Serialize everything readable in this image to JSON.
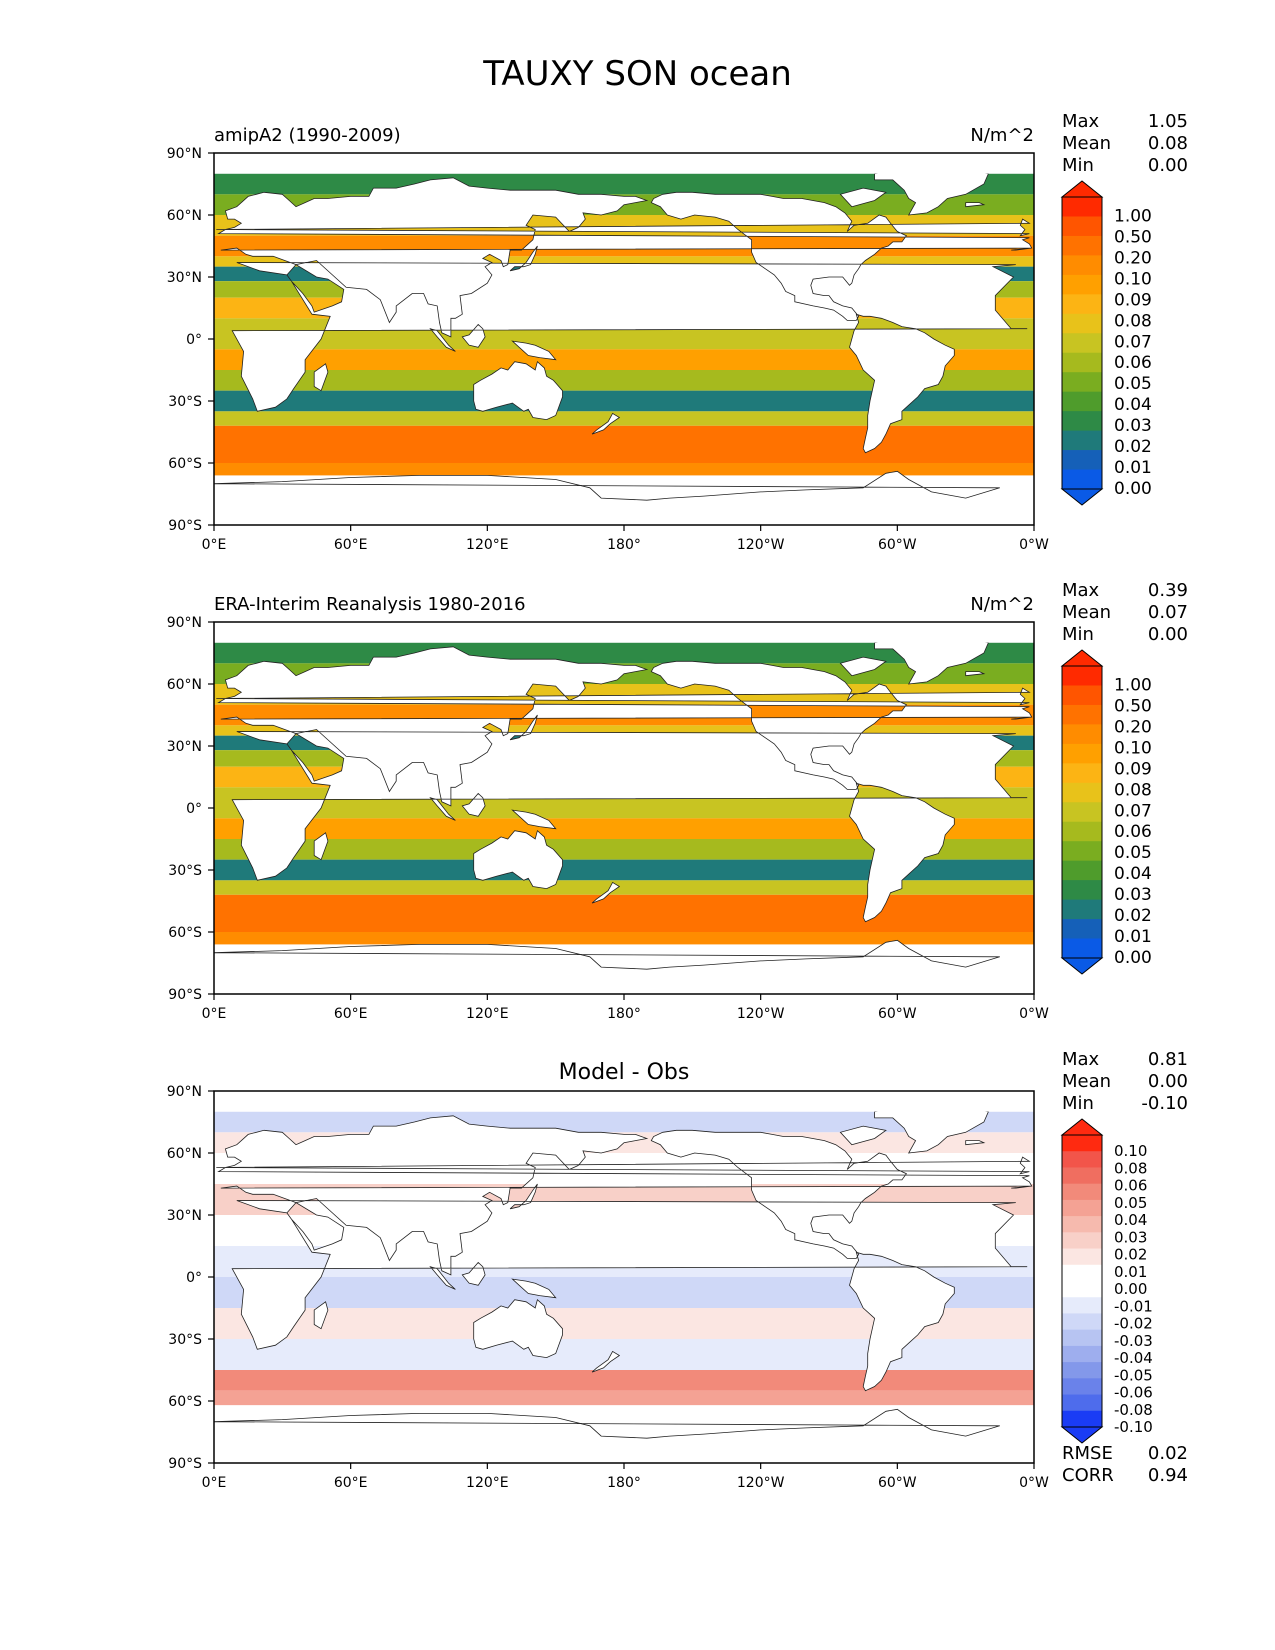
{
  "figure": {
    "title": "TAUXY SON ocean"
  },
  "axes": {
    "lat_ticks": [
      "90°N",
      "60°N",
      "30°N",
      "0°",
      "30°S",
      "60°S",
      "90°S"
    ],
    "lon_ticks": [
      "0°E",
      "60°E",
      "120°E",
      "180°",
      "120°W",
      "60°W",
      "0°W"
    ]
  },
  "stat_labels": {
    "max": "Max",
    "mean": "Mean",
    "min": "Min",
    "rmse": "RMSE",
    "corr": "CORR"
  },
  "panels": [
    {
      "left_title": "amipA2 (1990-2009)",
      "center_title": "",
      "units": "N/m^2",
      "stats": {
        "max": "1.05",
        "mean": "0.08",
        "min": "0.00"
      },
      "colorbar": {
        "labels": [
          "1.00",
          "0.50",
          "0.20",
          "0.10",
          "0.09",
          "0.08",
          "0.07",
          "0.06",
          "0.05",
          "0.04",
          "0.03",
          "0.02",
          "0.01",
          "0.00"
        ],
        "colors": [
          "#ff2a00",
          "#ff5500",
          "#ff7200",
          "#ff8c00",
          "#ffa000",
          "#fcb414",
          "#e8c21a",
          "#c8c422",
          "#a6ba1e",
          "#7aad20",
          "#4f9c2c",
          "#2e8a46",
          "#1f7a7a",
          "#1560b8",
          "#0a5ae6"
        ]
      }
    },
    {
      "left_title": "ERA-Interim Reanalysis 1980-2016",
      "center_title": "",
      "units": "N/m^2",
      "stats": {
        "max": "0.39",
        "mean": "0.07",
        "min": "0.00"
      },
      "colorbar": {
        "labels": [
          "1.00",
          "0.50",
          "0.20",
          "0.10",
          "0.09",
          "0.08",
          "0.07",
          "0.06",
          "0.05",
          "0.04",
          "0.03",
          "0.02",
          "0.01",
          "0.00"
        ],
        "colors": [
          "#ff2a00",
          "#ff5500",
          "#ff7200",
          "#ff8c00",
          "#ffa000",
          "#fcb414",
          "#e8c21a",
          "#c8c422",
          "#a6ba1e",
          "#7aad20",
          "#4f9c2c",
          "#2e8a46",
          "#1f7a7a",
          "#1560b8",
          "#0a5ae6"
        ]
      }
    },
    {
      "left_title": "",
      "center_title": "Model - Obs",
      "units": "",
      "stats": {
        "max": "0.81",
        "mean": "0.00",
        "min": "-0.10"
      },
      "extra_stats": {
        "rmse": "0.02",
        "corr": "0.94"
      },
      "colorbar": {
        "labels": [
          "0.10",
          "0.08",
          "0.06",
          "0.05",
          "0.04",
          "0.03",
          "0.02",
          "0.01",
          "0.00",
          "-0.01",
          "-0.02",
          "-0.03",
          "-0.04",
          "-0.05",
          "-0.06",
          "-0.08",
          "-0.10"
        ],
        "colors": [
          "#ff2a10",
          "#f2554a",
          "#f06e60",
          "#f28a7a",
          "#f4a294",
          "#f6baae",
          "#f8d0c8",
          "#fbe6e2",
          "#ffffff",
          "#ffffff",
          "#e6ebfb",
          "#cfd8f7",
          "#b7c4f2",
          "#9eaeee",
          "#8398ea",
          "#6a82ea",
          "#4e6cec",
          "#1a3cf5"
        ]
      }
    }
  ]
}
